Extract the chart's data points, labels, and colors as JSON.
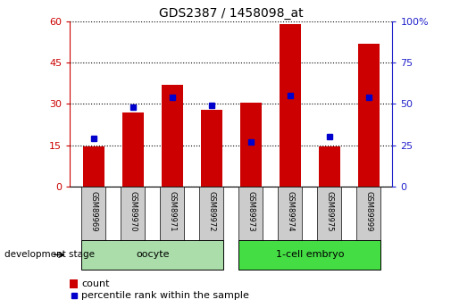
{
  "title": "GDS2387 / 1458098_at",
  "categories": [
    "GSM89969",
    "GSM89970",
    "GSM89971",
    "GSM89972",
    "GSM89973",
    "GSM89974",
    "GSM89975",
    "GSM89999"
  ],
  "counts": [
    14.5,
    27.0,
    37.0,
    28.0,
    30.5,
    59.0,
    14.5,
    52.0
  ],
  "percentiles": [
    29,
    48,
    54,
    49,
    27,
    55,
    30,
    54
  ],
  "bar_color": "#cc0000",
  "dot_color": "#0000cc",
  "left_ylim": [
    0,
    60
  ],
  "left_yticks": [
    0,
    15,
    30,
    45,
    60
  ],
  "right_ylim": [
    0,
    100
  ],
  "right_yticks": [
    0,
    25,
    50,
    75,
    100
  ],
  "groups": [
    {
      "label": "oocyte",
      "indices": [
        0,
        1,
        2,
        3
      ],
      "color": "#aaddaa"
    },
    {
      "label": "1-cell embryo",
      "indices": [
        4,
        5,
        6,
        7
      ],
      "color": "#44dd44"
    }
  ],
  "group_label": "development stage",
  "legend_count_label": "count",
  "legend_percentile_label": "percentile rank within the sample",
  "tick_color_left": "#cc0000",
  "tick_color_right": "#2222cc",
  "bar_width": 0.55,
  "category_bg": "#cccccc"
}
